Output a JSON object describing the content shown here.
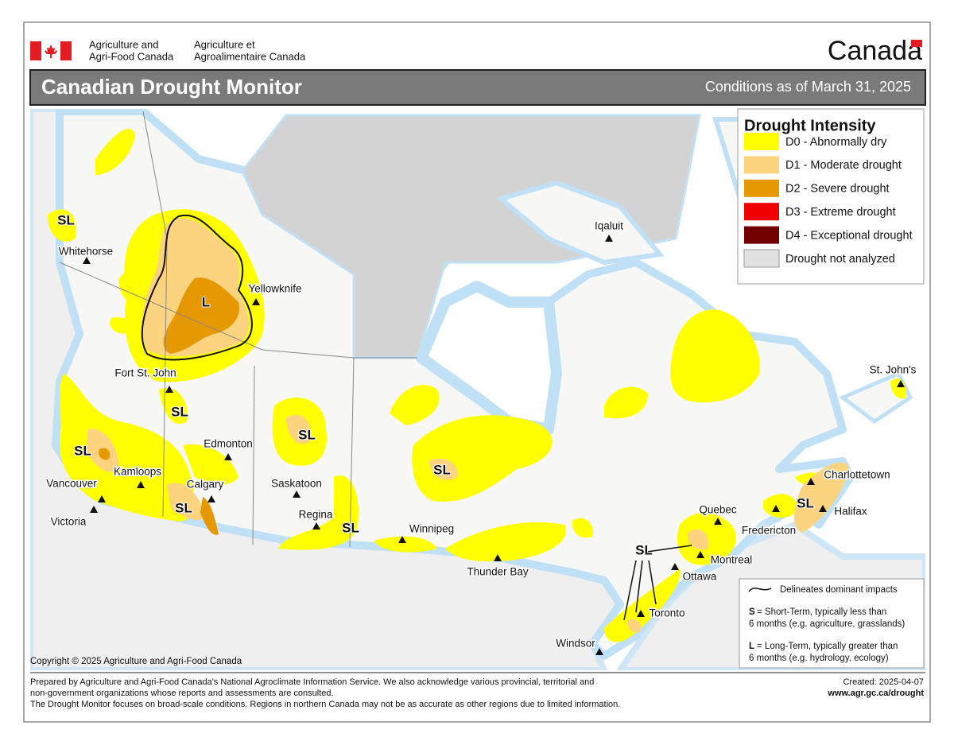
{
  "header": {
    "agency_en_1": "Agriculture and",
    "agency_en_2": "Agri-Food Canada",
    "agency_fr_1": "Agriculture et",
    "agency_fr_2": "Agroalimentaire Canada",
    "wordmark": "Canada"
  },
  "title": "Canadian Drought Monitor",
  "conditions": "Conditions as of March 31, 2025",
  "legend": {
    "title": "Drought Intensity",
    "items": [
      {
        "label": "D0 - Abnormally dry",
        "color": "#ffff00"
      },
      {
        "label": "D1 - Moderate drought",
        "color": "#fcd37f"
      },
      {
        "label": "D2 - Severe drought",
        "color": "#e69800"
      },
      {
        "label": "D3 - Extreme drought",
        "color": "#f00000"
      },
      {
        "label": "D4 - Exceptional drought",
        "color": "#730000"
      },
      {
        "label": "Drought not analyzed",
        "color": "#e1e1e1"
      }
    ]
  },
  "cities": [
    "Whitehorse",
    "Yellowknife",
    "Iqaluit",
    "Fort St. John",
    "Edmonton",
    "Kamloops",
    "Calgary",
    "Vancouver",
    "Victoria",
    "Saskatoon",
    "Regina",
    "Winnipeg",
    "Thunder Bay",
    "Windsor",
    "Toronto",
    "Ottawa",
    "Montreal",
    "Quebec",
    "Fredericton",
    "Halifax",
    "Charlottetown",
    "St. John's"
  ],
  "impact_labels": [
    "SL",
    "L",
    "SL",
    "SL",
    "SL",
    "SL",
    "SL",
    "SL",
    "SL",
    "SL"
  ],
  "notes": {
    "line": "Delineates dominant impacts",
    "short_key": "S",
    "short_1": "= Short-Term, typically less than",
    "short_2": "6 months (e.g. agriculture, grasslands)",
    "long_key": "L",
    "long_1": "= Long-Term, typically greater  than",
    "long_2": "6 months (e.g. hydrology, ecology)"
  },
  "copyright": "Copyright © 2025 Agriculture and Agri-Food Canada",
  "footer": {
    "line_1": "Prepared by Agriculture and Agri-Food Canada's National Agroclimate Information Service.  We also acknowledge various provincial, territorial and",
    "line_2": "non-government organizations whose reports and assessments are consulted.",
    "line_3": "The Drought Monitor focuses on broad-scale conditions.  Regions in northern Canada may not be as accurate as other regions due to limited information.",
    "created": "Created: 2025-04-07",
    "url": "www.agr.gc.ca/drought"
  }
}
